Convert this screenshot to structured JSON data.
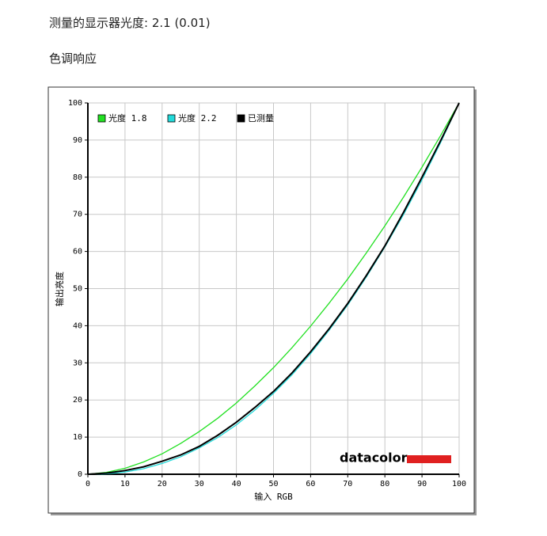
{
  "header": {
    "measurement": "测量的显示器光度: 2.1 (0.01)",
    "section": "色调响应"
  },
  "chart_data": {
    "type": "line",
    "x_label": "输入 RGB",
    "y_label": "输出亮度",
    "logo": "datacolor",
    "x": [
      0,
      5,
      10,
      15,
      20,
      25,
      30,
      35,
      40,
      45,
      50,
      55,
      60,
      65,
      70,
      75,
      80,
      85,
      90,
      95,
      100
    ],
    "series": [
      {
        "name": "光度 1.8",
        "color": "#22e022",
        "values": [
          0,
          0.5,
          1.6,
          3.3,
          5.5,
          8.3,
          11.5,
          15.1,
          19.2,
          23.8,
          28.7,
          34.1,
          39.9,
          46.1,
          52.6,
          59.6,
          66.9,
          74.6,
          82.7,
          91.2,
          100
        ]
      },
      {
        "name": "光度 2.2",
        "color": "#22dada",
        "values": [
          0,
          0.1,
          0.6,
          1.5,
          2.9,
          4.7,
          7.1,
          9.9,
          13.3,
          17.3,
          21.8,
          26.8,
          32.5,
          38.8,
          45.6,
          53.1,
          61.2,
          69.9,
          79.3,
          89.3,
          100
        ]
      },
      {
        "name": "已测量",
        "color": "#000000",
        "values": [
          0,
          0.3,
          1.0,
          2.0,
          3.5,
          5.2,
          7.5,
          10.5,
          14,
          18,
          22.3,
          27.3,
          33,
          39.2,
          46,
          53.5,
          61.5,
          70.5,
          80,
          89.8,
          100
        ]
      }
    ],
    "xlim": [
      0,
      100
    ],
    "ylim": [
      0,
      100
    ],
    "xticks": [
      0,
      10,
      20,
      30,
      40,
      50,
      60,
      70,
      80,
      90,
      100
    ],
    "yticks": [
      0,
      10,
      20,
      30,
      40,
      50,
      60,
      70,
      80,
      90,
      100
    ],
    "grid": true
  }
}
